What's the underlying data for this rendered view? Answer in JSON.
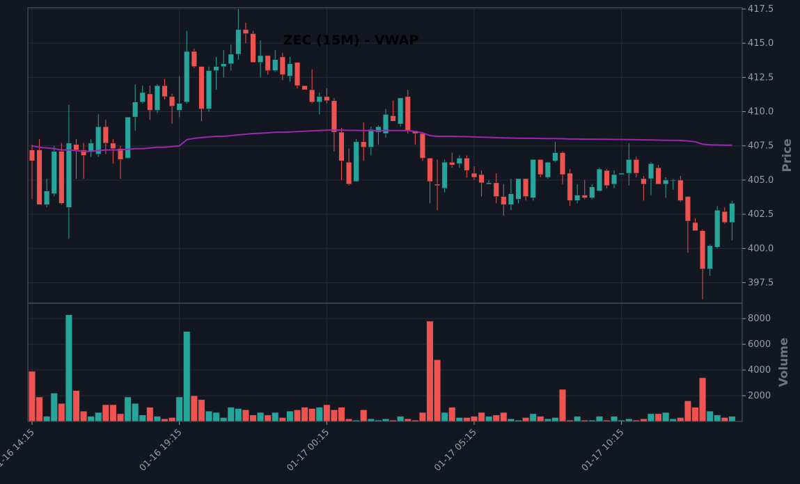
{
  "chart_data": {
    "type": "candlestick",
    "title": "ZEC (15M) - VWAP",
    "ylabel": "Price",
    "volume_label": "Volume",
    "price_ylim": [
      396,
      417.6
    ],
    "volume_ylim": [
      0,
      9200
    ],
    "price_ticks": [
      "397.5",
      "400.0",
      "402.5",
      "405.0",
      "407.5",
      "410.0",
      "412.5",
      "415.0",
      "417.5"
    ],
    "volume_ticks": [
      "2000",
      "4000",
      "6000",
      "8000"
    ],
    "x_ticks": [
      {
        "index": 0,
        "label": "01-16 14:15"
      },
      {
        "index": 20,
        "label": "01-16 19:15"
      },
      {
        "index": 40,
        "label": "01-17 00:15"
      },
      {
        "index": 60,
        "label": "01-17 05:15"
      },
      {
        "index": 80,
        "label": "01-17 10:15"
      }
    ],
    "grid": true,
    "colors": {
      "up": "#26a69a",
      "down": "#ef5350",
      "vwap": "#9c27b0",
      "background": "#131722"
    },
    "candles": [
      [
        407.2,
        407.6,
        403.6,
        406.4,
        3900
      ],
      [
        407.2,
        408.0,
        403.2,
        403.2,
        1900
      ],
      [
        403.2,
        405.1,
        403.0,
        404.2,
        400
      ],
      [
        404.0,
        407.5,
        403.8,
        407.1,
        2200
      ],
      [
        407.1,
        407.7,
        403.2,
        403.3,
        1400
      ],
      [
        403.0,
        410.5,
        400.7,
        407.7,
        8300
      ],
      [
        407.6,
        408.0,
        405.1,
        407.2,
        2400
      ],
      [
        407.2,
        407.7,
        405.1,
        406.8,
        800
      ],
      [
        407.1,
        408.0,
        406.7,
        407.7,
        400
      ],
      [
        406.9,
        409.8,
        406.7,
        408.9,
        700
      ],
      [
        408.9,
        409.4,
        406.9,
        407.7,
        1300
      ],
      [
        407.7,
        408.0,
        406.2,
        407.3,
        1300
      ],
      [
        407.3,
        407.5,
        405.1,
        406.5,
        600
      ],
      [
        406.6,
        409.6,
        406.6,
        409.6,
        1900
      ],
      [
        409.6,
        412.0,
        408.6,
        410.7,
        1400
      ],
      [
        410.7,
        411.9,
        410.6,
        411.4,
        500
      ],
      [
        411.3,
        411.9,
        409.4,
        410.1,
        1100
      ],
      [
        410.1,
        412.0,
        409.9,
        411.9,
        400
      ],
      [
        411.9,
        412.4,
        410.9,
        411.1,
        200
      ],
      [
        411.1,
        411.3,
        409.1,
        410.4,
        300
      ],
      [
        410.1,
        412.6,
        409.6,
        410.6,
        1900
      ],
      [
        410.7,
        415.9,
        410.6,
        414.4,
        7000
      ],
      [
        414.4,
        414.6,
        413.2,
        413.3,
        2000
      ],
      [
        413.3,
        413.3,
        409.3,
        410.2,
        1700
      ],
      [
        410.2,
        413.3,
        410.0,
        413.0,
        800
      ],
      [
        413.0,
        414.0,
        411.6,
        413.3,
        700
      ],
      [
        413.3,
        414.5,
        412.5,
        413.5,
        300
      ],
      [
        413.5,
        414.9,
        413.0,
        414.2,
        1100
      ],
      [
        414.2,
        417.5,
        413.8,
        416.0,
        1000
      ],
      [
        416.0,
        416.5,
        415.0,
        415.7,
        900
      ],
      [
        415.7,
        415.9,
        413.6,
        413.6,
        500
      ],
      [
        413.6,
        415.2,
        412.5,
        414.1,
        700
      ],
      [
        414.1,
        414.1,
        412.7,
        413.0,
        500
      ],
      [
        413.0,
        414.5,
        412.9,
        413.8,
        700
      ],
      [
        414.0,
        414.3,
        412.3,
        412.7,
        300
      ],
      [
        412.6,
        414.0,
        412.2,
        413.5,
        800
      ],
      [
        413.6,
        413.6,
        411.7,
        411.9,
        900
      ],
      [
        411.9,
        411.9,
        411.6,
        411.6,
        1100
      ],
      [
        411.6,
        413.1,
        410.6,
        410.7,
        1000
      ],
      [
        410.7,
        411.4,
        409.8,
        411.1,
        1100
      ],
      [
        411.1,
        411.7,
        410.6,
        410.8,
        1300
      ],
      [
        410.8,
        411.0,
        407.1,
        408.5,
        900
      ],
      [
        408.5,
        408.8,
        405.0,
        406.4,
        1100
      ],
      [
        406.3,
        407.3,
        404.6,
        404.7,
        200
      ],
      [
        404.9,
        408.0,
        404.9,
        407.8,
        100
      ],
      [
        407.8,
        409.2,
        406.4,
        407.4,
        900
      ],
      [
        407.4,
        408.9,
        406.8,
        408.7,
        200
      ],
      [
        408.5,
        409.0,
        407.6,
        408.9,
        100
      ],
      [
        408.4,
        410.2,
        408.1,
        409.8,
        200
      ],
      [
        409.7,
        410.8,
        409.5,
        409.3,
        100
      ],
      [
        409.1,
        411.0,
        408.9,
        411.0,
        400
      ],
      [
        411.1,
        411.6,
        408.4,
        408.6,
        200
      ],
      [
        408.6,
        408.6,
        407.6,
        408.4,
        100
      ],
      [
        408.4,
        408.4,
        406.4,
        406.6,
        700
      ],
      [
        406.6,
        406.6,
        403.3,
        404.9,
        7800
      ],
      [
        404.7,
        406.5,
        402.8,
        404.6,
        4800
      ],
      [
        404.4,
        406.5,
        404.1,
        406.3,
        700
      ],
      [
        406.3,
        407.0,
        405.9,
        406.1,
        1100
      ],
      [
        406.2,
        406.8,
        405.9,
        406.6,
        300
      ],
      [
        406.6,
        406.8,
        405.2,
        405.7,
        300
      ],
      [
        405.5,
        406.0,
        405.0,
        405.2,
        400
      ],
      [
        405.4,
        405.7,
        403.8,
        404.8,
        700
      ],
      [
        404.7,
        405.0,
        404.8,
        404.8,
        400
      ],
      [
        404.8,
        405.5,
        403.3,
        403.8,
        500
      ],
      [
        403.8,
        404.7,
        402.4,
        403.2,
        700
      ],
      [
        403.2,
        405.1,
        402.8,
        404.0,
        200
      ],
      [
        403.6,
        405.1,
        403.3,
        405.1,
        100
      ],
      [
        405.1,
        405.1,
        403.5,
        403.8,
        300
      ],
      [
        403.7,
        406.5,
        403.5,
        406.5,
        600
      ],
      [
        406.5,
        406.5,
        405.2,
        405.4,
        400
      ],
      [
        405.2,
        406.3,
        405.1,
        406.3,
        200
      ],
      [
        406.4,
        407.8,
        406.3,
        407.0,
        300
      ],
      [
        407.0,
        407.1,
        404.7,
        405.4,
        2500
      ],
      [
        405.5,
        405.8,
        403.1,
        403.5,
        100
      ],
      [
        403.5,
        404.7,
        403.3,
        403.9,
        400
      ],
      [
        403.9,
        405.0,
        403.6,
        403.7,
        100
      ],
      [
        403.7,
        404.7,
        403.6,
        404.5,
        100
      ],
      [
        404.2,
        405.9,
        404.2,
        405.8,
        400
      ],
      [
        405.7,
        405.8,
        404.4,
        404.6,
        100
      ],
      [
        404.7,
        405.7,
        404.4,
        405.4,
        400
      ],
      [
        405.4,
        405.5,
        405.4,
        405.5,
        100
      ],
      [
        405.5,
        407.7,
        404.6,
        406.5,
        200
      ],
      [
        406.5,
        406.7,
        405.2,
        405.5,
        100
      ],
      [
        405.1,
        405.3,
        403.5,
        404.7,
        200
      ],
      [
        405.1,
        406.3,
        403.9,
        406.2,
        600
      ],
      [
        405.9,
        406.1,
        404.7,
        404.7,
        600
      ],
      [
        404.7,
        405.2,
        403.7,
        405.0,
        700
      ],
      [
        405.0,
        405.1,
        404.3,
        405.0,
        200
      ],
      [
        405.0,
        405.3,
        403.4,
        403.5,
        300
      ],
      [
        403.8,
        403.8,
        399.7,
        402.0,
        1600
      ],
      [
        401.9,
        402.2,
        401.3,
        401.3,
        1100
      ],
      [
        401.3,
        401.4,
        396.3,
        398.5,
        3400
      ],
      [
        398.5,
        400.3,
        398.0,
        400.2,
        800
      ],
      [
        400.1,
        403.1,
        400.0,
        402.8,
        500
      ],
      [
        402.7,
        403.0,
        401.8,
        401.9,
        300
      ],
      [
        401.9,
        403.5,
        400.6,
        403.3,
        400
      ]
    ],
    "vwap": [
      407.5,
      407.4,
      407.35,
      407.3,
      407.2,
      407.2,
      407.15,
      407.1,
      407.1,
      407.15,
      407.2,
      407.2,
      407.2,
      407.25,
      407.3,
      407.3,
      407.35,
      407.4,
      407.4,
      407.45,
      407.5,
      407.95,
      408.05,
      408.1,
      408.15,
      408.2,
      408.2,
      408.25,
      408.3,
      408.35,
      408.4,
      408.42,
      408.45,
      408.5,
      408.5,
      408.52,
      408.55,
      408.57,
      408.6,
      408.62,
      408.65,
      408.65,
      408.65,
      408.63,
      408.63,
      408.62,
      408.62,
      408.62,
      408.62,
      408.62,
      408.62,
      408.62,
      408.55,
      408.45,
      408.25,
      408.2,
      408.2,
      408.2,
      408.18,
      408.17,
      408.15,
      408.13,
      408.12,
      408.1,
      408.08,
      408.07,
      408.06,
      408.05,
      408.05,
      408.04,
      408.03,
      408.03,
      408.02,
      408.0,
      408.0,
      407.99,
      407.99,
      407.98,
      407.98,
      407.97,
      407.97,
      407.96,
      407.95,
      407.94,
      407.93,
      407.92,
      407.91,
      407.9,
      407.9,
      407.85,
      407.8,
      407.62,
      407.58,
      407.56,
      407.55,
      407.55
    ]
  }
}
